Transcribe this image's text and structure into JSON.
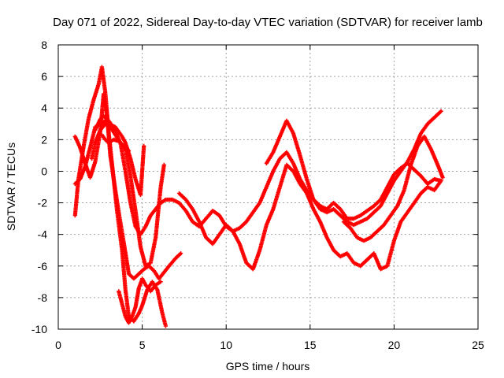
{
  "chart_data": {
    "type": "scatter",
    "title": "Day 071 of 2022, Sidereal Day-to-day VTEC variation (SDTVAR) for receiver lamb",
    "xlabel": "GPS time / hours",
    "ylabel": "SDTVAR / TECUs",
    "xlim": [
      0,
      25
    ],
    "ylim": [
      -10,
      8
    ],
    "xticks": [
      0,
      5,
      10,
      15,
      20,
      25
    ],
    "yticks": [
      -10,
      -8,
      -6,
      -4,
      -2,
      0,
      2,
      4,
      6,
      8
    ],
    "grid": true,
    "marker": "+",
    "color": "#ff0000",
    "series": [
      {
        "name": "trace-1",
        "x": [
          1.0,
          1.3,
          1.6,
          1.9,
          2.2,
          2.5,
          2.7,
          2.9,
          3.1,
          3.4,
          3.6,
          3.9,
          4.2,
          4.5,
          4.8,
          5.1,
          5.4,
          5.7,
          6.0,
          6.3,
          6.6,
          7.0,
          7.3
        ],
        "y": [
          2.2,
          1.5,
          0.5,
          -0.4,
          0.6,
          2.5,
          4.9,
          3.5,
          1.0,
          -1.2,
          -2.6,
          -4.5,
          -6.5,
          -6.8,
          -6.5,
          -6.2,
          -6.0,
          -6.3,
          -6.8,
          -6.4,
          -6.0,
          -5.5,
          -5.2
        ]
      },
      {
        "name": "trace-2",
        "x": [
          1.0,
          1.2,
          1.5,
          1.8,
          2.1,
          2.4,
          2.6,
          2.8,
          3.0,
          3.2,
          3.5,
          3.8,
          4.0,
          4.2,
          4.5,
          4.8,
          5.0,
          5.3,
          5.6,
          5.9,
          6.2,
          6.4
        ],
        "y": [
          -2.8,
          -0.5,
          1.5,
          3.3,
          4.5,
          5.5,
          6.6,
          5.0,
          2.5,
          0.5,
          -2.5,
          -5.0,
          -7.5,
          -9.2,
          -9.5,
          -9.0,
          -8.5,
          -7.5,
          -7.0,
          -7.5,
          -9.0,
          -9.8
        ]
      },
      {
        "name": "trace-3",
        "x": [
          1.0,
          1.3,
          1.6,
          1.9,
          2.2,
          2.5,
          2.8,
          3.1,
          3.4,
          3.7,
          4.0,
          4.3,
          4.6,
          4.9,
          5.2,
          5.5,
          5.8,
          6.1,
          6.4,
          6.8,
          7.2,
          7.6,
          8.0,
          8.4,
          8.8,
          9.2,
          9.6,
          10.0,
          10.4,
          10.8,
          11.2,
          11.6,
          12.0,
          12.4,
          12.8,
          13.2,
          13.6,
          14.0,
          14.4,
          14.8,
          15.2,
          15.6,
          16.0,
          16.4,
          16.8,
          17.2,
          17.6,
          18.0,
          18.4,
          18.8,
          19.2,
          19.6,
          20.0,
          20.4,
          20.8,
          21.2,
          21.6,
          22.0,
          22.4,
          22.8
        ],
        "y": [
          -0.8,
          -0.5,
          0.3,
          1.5,
          2.8,
          3.0,
          3.2,
          2.8,
          2.5,
          1.8,
          0.0,
          -2.0,
          -3.5,
          -4.0,
          -3.5,
          -2.8,
          -2.4,
          -2.0,
          -1.8,
          -1.8,
          -2.0,
          -2.5,
          -3.2,
          -3.5,
          -3.0,
          -2.5,
          -2.8,
          -3.5,
          -3.8,
          -3.6,
          -3.2,
          -2.6,
          -2.0,
          -1.0,
          0.0,
          0.8,
          1.2,
          0.5,
          -0.5,
          -1.2,
          -1.8,
          -2.2,
          -2.4,
          -2.0,
          -2.4,
          -3.0,
          -3.0,
          -2.8,
          -2.5,
          -2.2,
          -1.8,
          -1.0,
          -0.2,
          0.2,
          0.5,
          0.1,
          -0.3,
          -0.8,
          -0.5,
          -0.6
        ]
      },
      {
        "name": "trace-4",
        "x": [
          2.0,
          2.2,
          2.5,
          2.8,
          3.1,
          3.4,
          3.7,
          4.0,
          4.3,
          4.6,
          4.9,
          5.2,
          5.5,
          5.8,
          6.1,
          6.3
        ],
        "y": [
          0.8,
          1.8,
          2.6,
          3.0,
          2.8,
          2.3,
          1.8,
          1.4,
          -0.3,
          -2.5,
          -4.8,
          -6.0,
          -5.8,
          -4.2,
          -1.0,
          0.4
        ]
      },
      {
        "name": "trace-5",
        "x": [
          2.2,
          2.5,
          2.7,
          3.0,
          3.2,
          3.4,
          3.6,
          3.8,
          4.0,
          4.3,
          4.6,
          4.9,
          5.1
        ],
        "y": [
          2.6,
          3.3,
          3.5,
          3.2,
          2.9,
          2.8,
          2.5,
          2.2,
          1.8,
          0.8,
          -0.5,
          -1.5,
          1.6
        ]
      },
      {
        "name": "trace-6",
        "x": [
          2.6,
          2.8,
          3.0,
          3.3,
          3.6,
          3.9,
          4.2
        ],
        "y": [
          2.3,
          2.0,
          1.8,
          2.0,
          1.9,
          1.6,
          1.3
        ]
      },
      {
        "name": "trace-7",
        "x": [
          3.6,
          3.8,
          4.0,
          4.2,
          4.4,
          4.6,
          4.8,
          5.0,
          5.2,
          5.5,
          5.8,
          6.1
        ],
        "y": [
          -7.6,
          -8.4,
          -9.2,
          -9.6,
          -9.2,
          -8.6,
          -7.4,
          -6.8,
          -7.2,
          -7.6,
          -7.2,
          -7.0
        ]
      },
      {
        "name": "trace-8",
        "x": [
          7.2,
          7.6,
          8.0,
          8.4,
          8.8,
          9.2,
          9.6,
          10.0,
          10.4,
          10.8,
          11.2,
          11.6,
          12.0,
          12.4,
          12.8,
          13.2,
          13.6,
          14.0,
          14.4,
          14.8,
          15.2,
          15.6,
          16.0,
          16.4,
          16.8,
          17.2,
          17.6,
          18.0,
          18.4,
          18.8,
          19.2,
          19.6,
          20.0,
          20.4,
          20.8,
          21.2,
          21.6,
          22.0,
          22.4,
          22.8
        ],
        "y": [
          -1.4,
          -1.8,
          -2.4,
          -3.2,
          -4.2,
          -4.6,
          -4.0,
          -3.4,
          -3.8,
          -4.6,
          -5.8,
          -6.2,
          -5.0,
          -3.4,
          -2.4,
          -1.0,
          0.4,
          0.0,
          -0.8,
          -1.4,
          -2.4,
          -3.2,
          -4.2,
          -5.0,
          -5.4,
          -5.2,
          -5.8,
          -6.0,
          -5.6,
          -5.2,
          -6.2,
          -6.0,
          -4.4,
          -3.2,
          -2.6,
          -2.0,
          -1.4,
          -1.0,
          -1.2,
          -0.6
        ]
      },
      {
        "name": "trace-9",
        "x": [
          12.4,
          12.8,
          13.2,
          13.6,
          14.0,
          14.4,
          14.8,
          15.2,
          15.6,
          16.0,
          16.4,
          16.8,
          17.2,
          17.6,
          18.0,
          18.4,
          18.8,
          19.2,
          19.6,
          20.0,
          20.4,
          20.8,
          21.2,
          21.6,
          22.0,
          22.4,
          22.8
        ],
        "y": [
          0.5,
          1.2,
          2.2,
          3.2,
          2.4,
          1.0,
          -0.5,
          -1.8,
          -2.4,
          -2.6,
          -2.4,
          -2.8,
          -3.2,
          -3.4,
          -3.2,
          -3.0,
          -2.6,
          -2.2,
          -1.4,
          -0.6,
          0.0,
          0.6,
          1.4,
          2.4,
          3.0,
          3.4,
          3.8
        ]
      },
      {
        "name": "trace-10",
        "x": [
          17.0,
          17.4,
          17.8,
          18.2,
          18.6,
          19.0,
          19.4,
          19.8,
          20.2,
          20.6,
          21.0,
          21.4,
          21.8,
          22.2,
          22.6,
          22.9
        ],
        "y": [
          -3.2,
          -3.6,
          -4.2,
          -4.4,
          -4.2,
          -3.8,
          -3.4,
          -2.8,
          -2.2,
          -1.2,
          0.4,
          1.6,
          2.2,
          1.4,
          0.4,
          -0.4
        ]
      }
    ]
  }
}
